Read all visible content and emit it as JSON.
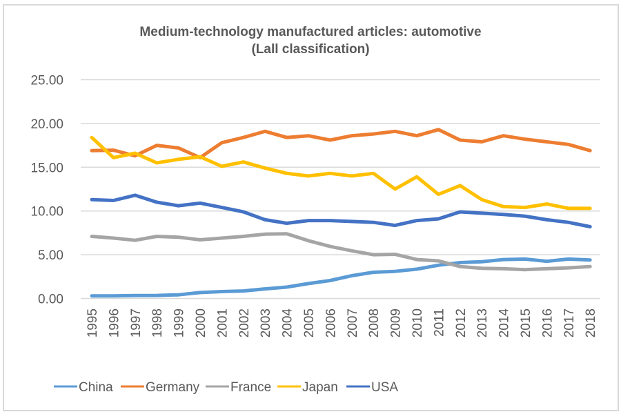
{
  "chart_data": {
    "type": "line",
    "title": "Medium-technology manufactured articles: automotive",
    "subtitle": "(Lall classification)",
    "xlabel": "",
    "ylabel": "",
    "ylim": [
      0,
      25
    ],
    "yticks": [
      "0.00",
      "5.00",
      "10.00",
      "15.00",
      "20.00",
      "25.00"
    ],
    "ytick_values": [
      0,
      5,
      10,
      15,
      20,
      25
    ],
    "grid": true,
    "legend_position": "bottom",
    "categories": [
      "1995",
      "1996",
      "1997",
      "1998",
      "1999",
      "2000",
      "2001",
      "2002",
      "2003",
      "2004",
      "2005",
      "2006",
      "2007",
      "2008",
      "2009",
      "2010",
      "2011",
      "2012",
      "2013",
      "2014",
      "2015",
      "2016",
      "2017",
      "2018"
    ],
    "series": [
      {
        "name": "China",
        "color": "#5b9bd5",
        "values": [
          0.3,
          0.3,
          0.34,
          0.35,
          0.42,
          0.68,
          0.79,
          0.86,
          1.1,
          1.3,
          1.7,
          2.05,
          2.6,
          3.0,
          3.1,
          3.35,
          3.8,
          4.1,
          4.2,
          4.45,
          4.5,
          4.25,
          4.5,
          4.4
        ]
      },
      {
        "name": "Germany",
        "color": "#ed7d31",
        "values": [
          16.9,
          16.95,
          16.3,
          17.5,
          17.2,
          16.1,
          17.8,
          18.4,
          19.1,
          18.4,
          18.6,
          18.1,
          18.6,
          18.8,
          19.1,
          18.6,
          19.3,
          18.1,
          17.9,
          18.6,
          18.2,
          17.9,
          17.6,
          16.9
        ]
      },
      {
        "name": "France",
        "color": "#a5a5a5",
        "values": [
          7.1,
          6.9,
          6.65,
          7.1,
          7.0,
          6.7,
          6.9,
          7.1,
          7.35,
          7.4,
          6.6,
          5.95,
          5.45,
          5.0,
          5.05,
          4.45,
          4.3,
          3.65,
          3.45,
          3.4,
          3.3,
          3.4,
          3.5,
          3.65
        ]
      },
      {
        "name": "Japan",
        "color": "#ffc000",
        "values": [
          18.4,
          16.1,
          16.6,
          15.5,
          15.9,
          16.2,
          15.1,
          15.6,
          14.9,
          14.3,
          14.0,
          14.3,
          14.0,
          14.3,
          12.5,
          13.9,
          11.9,
          12.9,
          11.3,
          10.5,
          10.4,
          10.8,
          10.3,
          10.3
        ]
      },
      {
        "name": "USA",
        "color": "#4472c4",
        "values": [
          11.3,
          11.2,
          11.8,
          11.0,
          10.6,
          10.9,
          10.4,
          9.9,
          9.0,
          8.6,
          8.9,
          8.9,
          8.8,
          8.7,
          8.35,
          8.9,
          9.1,
          9.9,
          9.75,
          9.6,
          9.4,
          9.0,
          8.7,
          8.2
        ]
      }
    ]
  }
}
